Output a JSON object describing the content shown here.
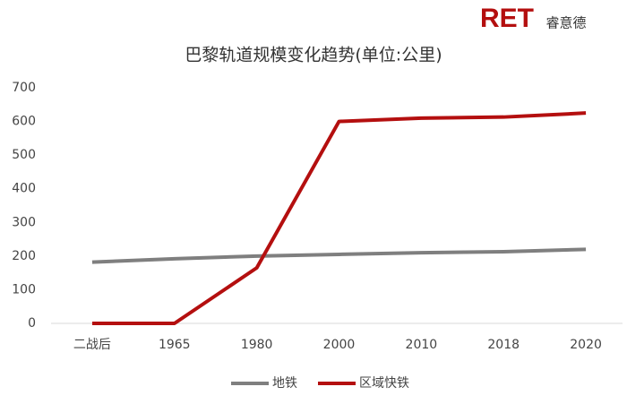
{
  "logo": {
    "mark": "RET",
    "name": "睿意德"
  },
  "chart_data": {
    "type": "line",
    "title": "巴黎轨道规模变化趋势(单位:公里)",
    "categories": [
      "二战后",
      "1965",
      "1980",
      "2000",
      "2010",
      "2018",
      "2020"
    ],
    "series": [
      {
        "name": "地铁",
        "color": "#7f7f7f",
        "values": [
          182,
          192,
          200,
          205,
          210,
          213,
          220
        ]
      },
      {
        "name": "区域快铁",
        "color": "#b40f0f",
        "values": [
          0,
          0,
          165,
          600,
          610,
          613,
          625
        ]
      }
    ],
    "ylim": [
      0,
      700
    ],
    "yticks": [
      0,
      100,
      200,
      300,
      400,
      500,
      600,
      700
    ],
    "grid": false,
    "legend": "bottom"
  }
}
